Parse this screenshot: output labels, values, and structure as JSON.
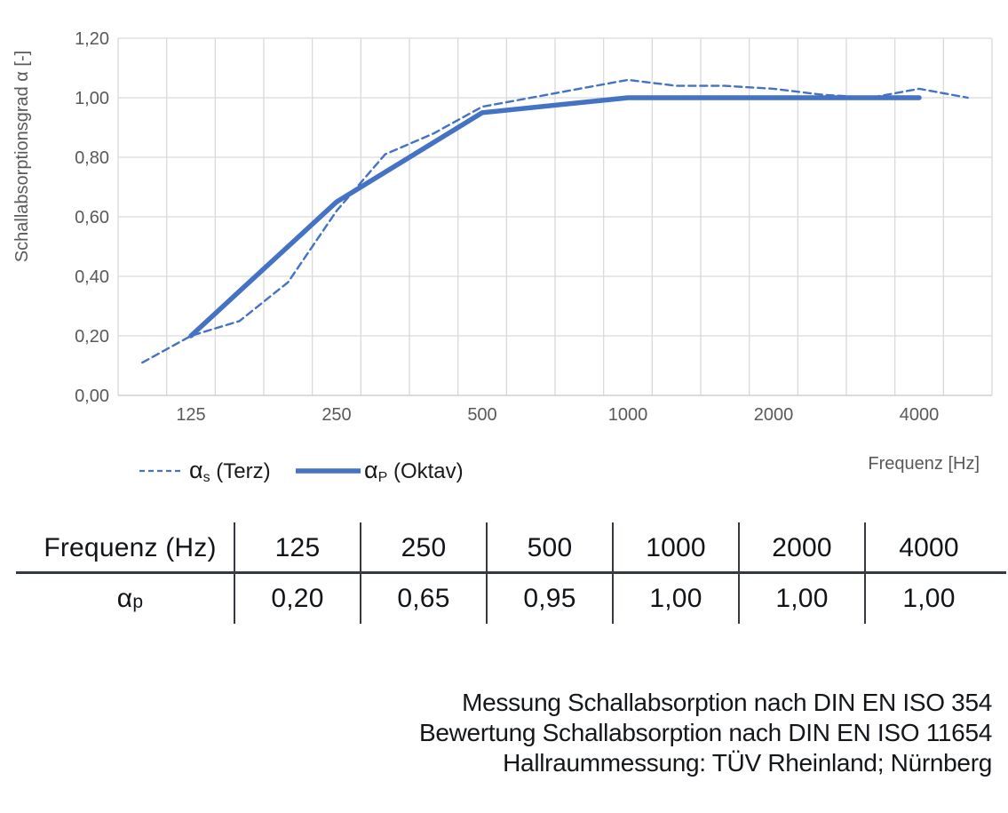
{
  "chart_data": {
    "type": "line",
    "title": "",
    "ylabel": "Schallabsorptionsgrad α [-]",
    "xlabel": "Frequenz [Hz]",
    "ylim": [
      0,
      1.2
    ],
    "grid": true,
    "x_scale": "third-octave-bands",
    "x_categories": [
      100,
      125,
      160,
      200,
      250,
      315,
      400,
      500,
      630,
      800,
      1000,
      1250,
      1600,
      2000,
      2500,
      3150,
      4000,
      5000
    ],
    "y_ticks": [
      {
        "value": 0.0,
        "label": "0,00"
      },
      {
        "value": 0.2,
        "label": "0,20"
      },
      {
        "value": 0.4,
        "label": "0,40"
      },
      {
        "value": 0.6,
        "label": "0,60"
      },
      {
        "value": 0.8,
        "label": "0,80"
      },
      {
        "value": 1.0,
        "label": "1,00"
      },
      {
        "value": 1.2,
        "label": "1,20"
      }
    ],
    "x_ticks": [
      {
        "value": 125,
        "label": "125"
      },
      {
        "value": 250,
        "label": "250"
      },
      {
        "value": 500,
        "label": "500"
      },
      {
        "value": 1000,
        "label": "1000"
      },
      {
        "value": 2000,
        "label": "2000"
      },
      {
        "value": 4000,
        "label": "4000"
      }
    ],
    "series": [
      {
        "name": "αs (Terz)",
        "style": "dashed",
        "x": [
          100,
          125,
          160,
          200,
          250,
          315,
          400,
          500,
          630,
          800,
          1000,
          1250,
          1600,
          2000,
          2500,
          3150,
          4000,
          5000
        ],
        "values": [
          0.11,
          0.2,
          0.25,
          0.38,
          0.62,
          0.81,
          0.88,
          0.97,
          1.0,
          1.03,
          1.06,
          1.04,
          1.04,
          1.03,
          1.01,
          1.0,
          1.03,
          1.0
        ]
      },
      {
        "name": "αP (Oktav)",
        "style": "solid",
        "x": [
          125,
          250,
          500,
          1000,
          2000,
          4000
        ],
        "values": [
          0.2,
          0.65,
          0.95,
          1.0,
          1.0,
          1.0
        ]
      }
    ],
    "legend": [
      {
        "symbol": "α",
        "sub": "s",
        "label": "(Terz)",
        "style": "dashed"
      },
      {
        "symbol": "α",
        "sub": "P",
        "label": "(Oktav)",
        "style": "solid"
      }
    ],
    "legend_position": "bottom-left",
    "colors": {
      "line": "#4472C4",
      "grid": "#D9D9D9",
      "tick_text": "#595959",
      "legend_text": "#1a1a1a"
    }
  },
  "table": {
    "header_label": "Frequenz (Hz)",
    "columns": [
      "125",
      "250",
      "500",
      "1000",
      "2000",
      "4000"
    ],
    "row_label": {
      "symbol": "α",
      "sub": "p"
    },
    "values": [
      "0,20",
      "0,65",
      "0,95",
      "1,00",
      "1,00",
      "1,00"
    ]
  },
  "footer": {
    "lines": [
      "Messung Schallabsorption nach DIN EN ISO 354",
      "Bewertung Schallabsorption nach DIN EN ISO 11654",
      "Hallraummessung: TÜV Rheinland; Nürnberg"
    ]
  }
}
